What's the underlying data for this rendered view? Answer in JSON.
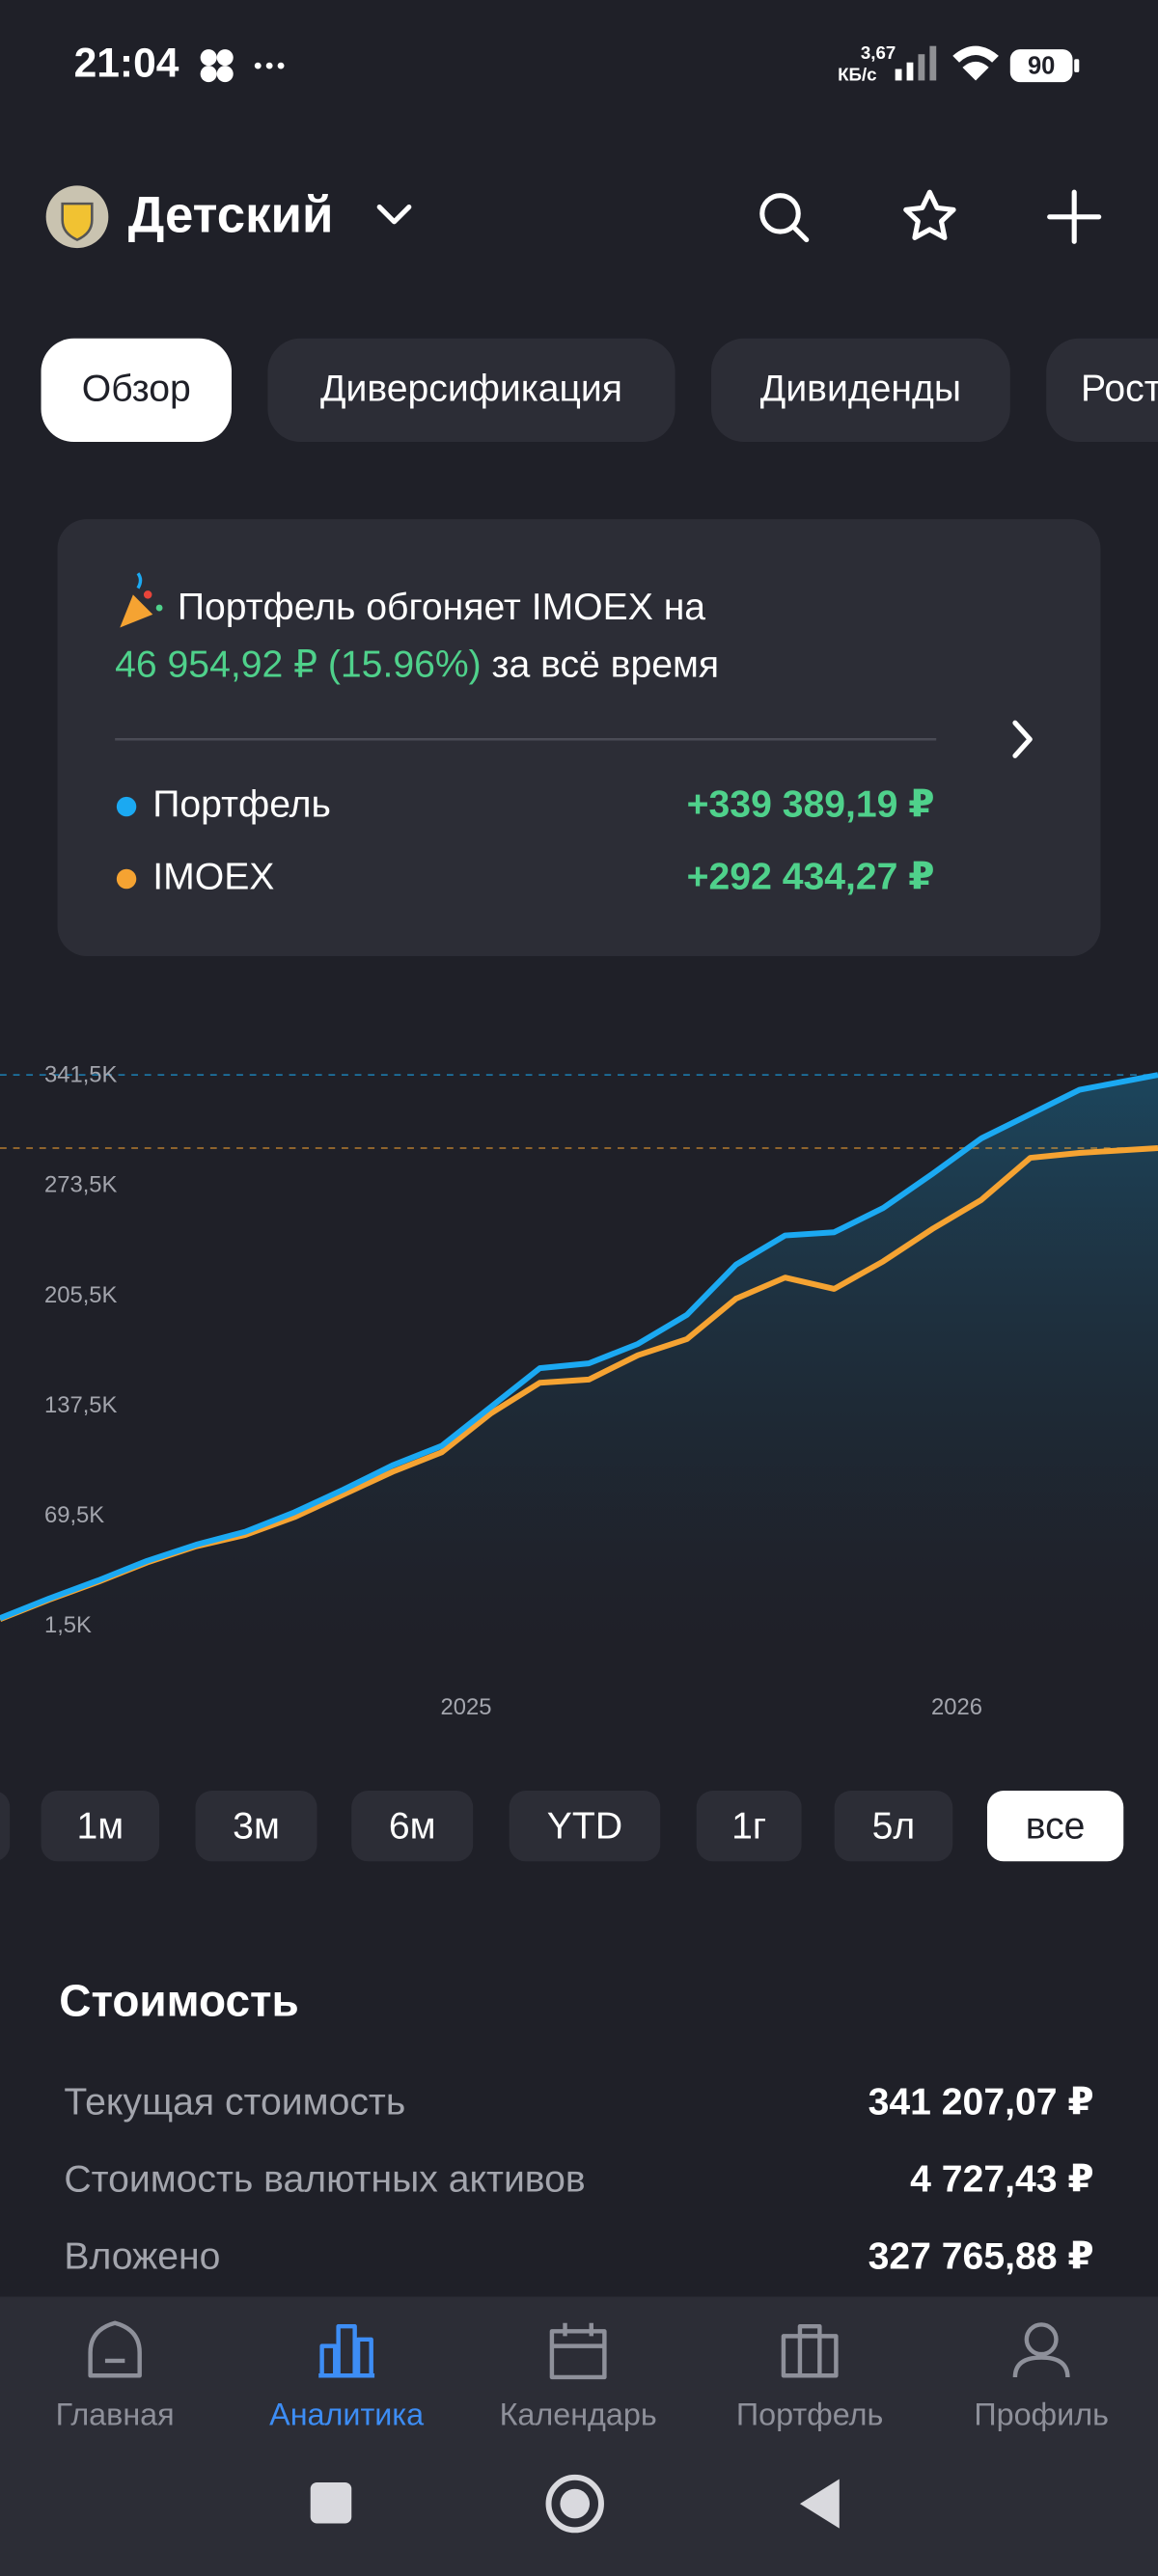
{
  "status_bar": {
    "time": "21:04",
    "speed_value": "3,67",
    "speed_unit": "КБ/с",
    "battery": "90"
  },
  "header": {
    "title": "Детский"
  },
  "tabs": [
    "Обзор",
    "Диверсификация",
    "Дивиденды",
    "Рост"
  ],
  "comparison": {
    "headline": "Портфель обгоняет IMOEX на",
    "amount": "46 954,92 ₽",
    "percent": "(15.96%)",
    "suffix": "за всё время",
    "rows": [
      {
        "label": "Портфель",
        "value": "+339 389,19 ₽"
      },
      {
        "label": "IMOEX",
        "value": "+292 434,27 ₽"
      }
    ]
  },
  "chart_data": {
    "type": "line",
    "x": [
      2024.05,
      2024.15,
      2024.25,
      2024.35,
      2024.45,
      2024.55,
      2024.65,
      2024.75,
      2024.85,
      2024.95,
      2025.05,
      2025.15,
      2025.25,
      2025.35,
      2025.45,
      2025.55,
      2025.65,
      2025.75,
      2025.85,
      2025.95,
      2026.05,
      2026.15,
      2026.25,
      2026.41
    ],
    "series": [
      {
        "name": "Портфель",
        "color": "#1ba9f2",
        "values": [
          5.6,
          17.7,
          28.9,
          41,
          51,
          59,
          71,
          85,
          100,
          112,
          136,
          160,
          163,
          175,
          193,
          224,
          242,
          244,
          259,
          280,
          302,
          317,
          332,
          341.2
        ]
      },
      {
        "name": "IMOEX",
        "color": "#f5a332",
        "values": [
          5,
          17,
          28,
          40,
          50,
          57,
          68,
          82,
          96,
          108,
          132,
          151,
          153,
          168,
          178,
          203,
          216,
          209,
          226,
          246,
          264,
          290,
          293,
          296
        ]
      }
    ],
    "xlim": [
      2024.05,
      2026.41
    ],
    "xticks": [
      2025,
      2026
    ],
    "ylim": [
      1.5,
      341.5
    ],
    "yticks": [
      {
        "value": 1.5,
        "label": "1,5K"
      },
      {
        "value": 69.5,
        "label": "69,5K"
      },
      {
        "value": 137.5,
        "label": "137,5K"
      },
      {
        "value": 205.5,
        "label": "205,5K"
      },
      {
        "value": 273.5,
        "label": "273,5K"
      },
      {
        "value": 341.5,
        "label": "341,5K"
      }
    ],
    "grid": false
  },
  "ranges": {
    "options": [
      "1м",
      "3м",
      "6м",
      "YTD",
      "1г",
      "5л",
      "все"
    ],
    "selected": 6
  },
  "value_section": {
    "title": "Стоимость",
    "rows": [
      {
        "label": "Текущая стоимость",
        "value": "341 207,07 ₽"
      },
      {
        "label": "Стоимость валютных активов",
        "value": "4 727,43 ₽"
      },
      {
        "label": "Вложено",
        "value": "327 765,88 ₽"
      }
    ]
  },
  "nav": {
    "items": [
      "Главная",
      "Аналитика",
      "Календарь",
      "Портфель",
      "Профиль"
    ],
    "active": 1
  }
}
